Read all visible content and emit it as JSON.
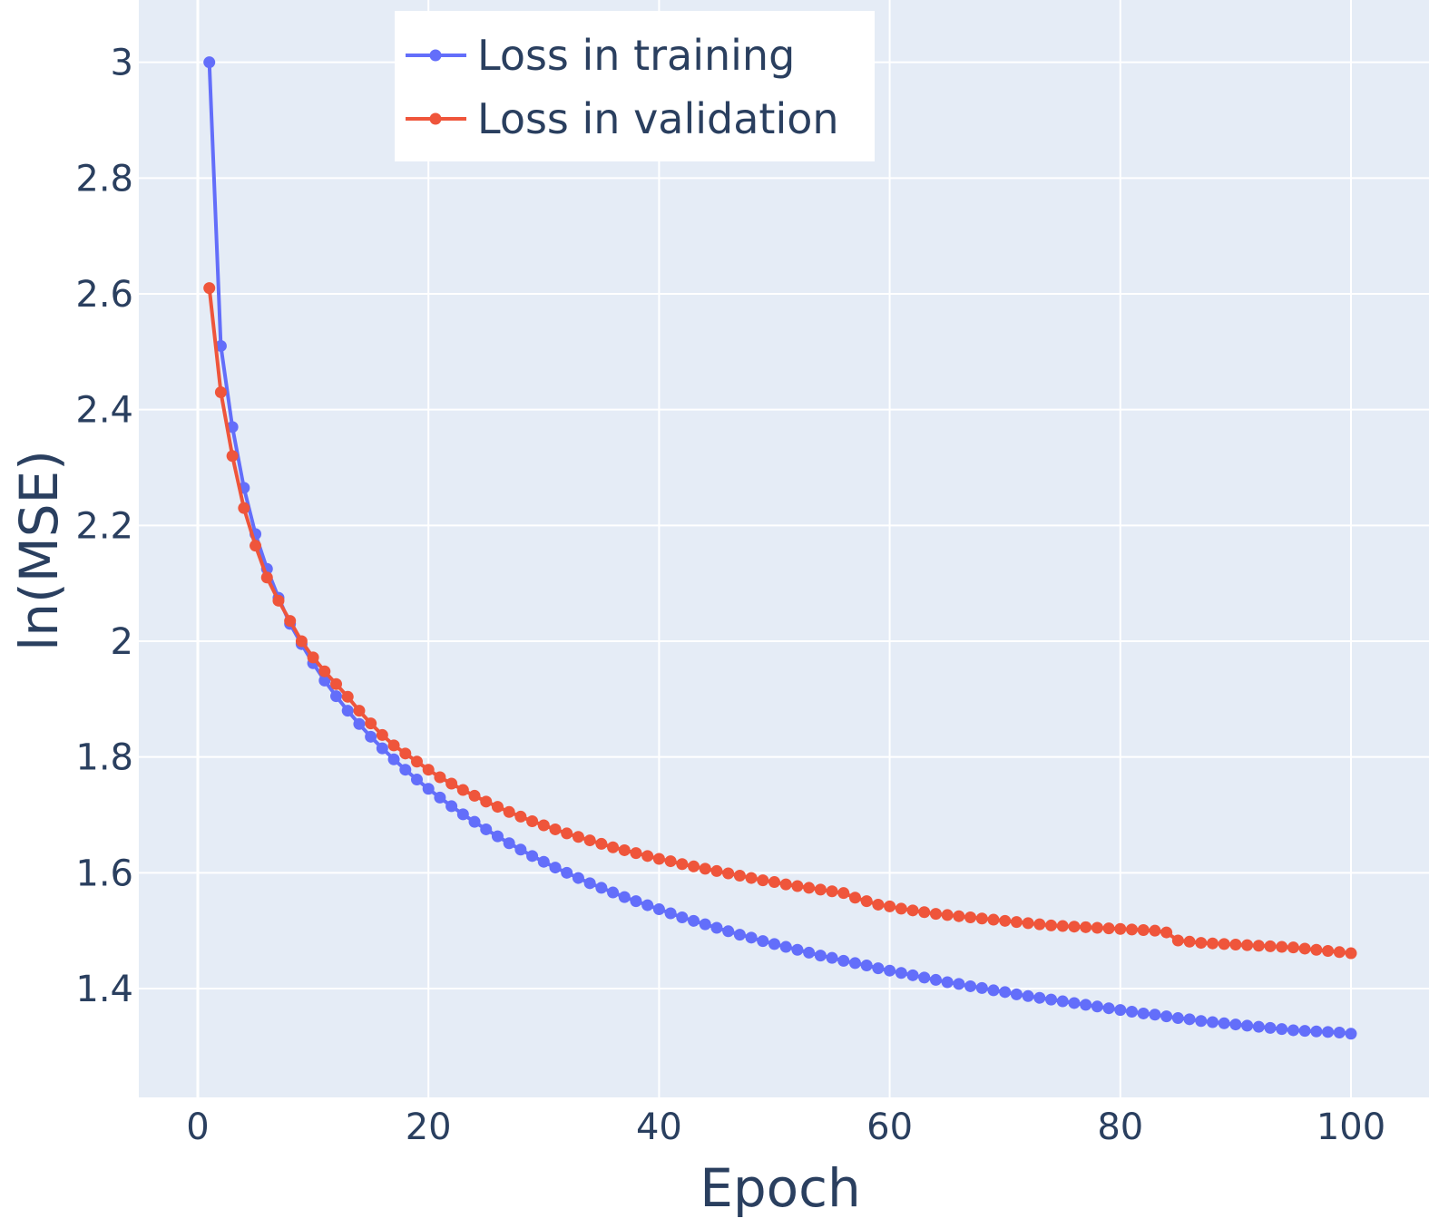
{
  "chart_data": {
    "type": "line",
    "title": "",
    "xlabel": "Epoch",
    "ylabel": "ln(MSE)",
    "xlim": [
      -5,
      107
    ],
    "ylim": [
      1.21,
      3.1
    ],
    "x_ticks": [
      0,
      20,
      40,
      60,
      80,
      100
    ],
    "y_ticks": [
      1.4,
      1.6,
      1.8,
      2.0,
      2.2,
      2.4,
      2.6,
      2.8,
      3.0
    ],
    "y_tick_labels": [
      "1.4",
      "1.6",
      "1.8",
      "2",
      "2.2",
      "2.4",
      "2.6",
      "2.8",
      "3"
    ],
    "grid": true,
    "legend_position": "top-center",
    "colors": {
      "plot_bg": "#e5ecf6",
      "grid": "#ffffff",
      "text": "#2a3f5f",
      "training": "#636efa",
      "validation": "#ef553b",
      "legend_bg": "#ffffff"
    },
    "series": [
      {
        "name": "Loss in training",
        "color": "#636efa",
        "x": [
          1,
          2,
          3,
          4,
          5,
          6,
          7,
          8,
          9,
          10,
          11,
          12,
          13,
          14,
          15,
          16,
          17,
          18,
          19,
          20,
          21,
          22,
          23,
          24,
          25,
          26,
          27,
          28,
          29,
          30,
          31,
          32,
          33,
          34,
          35,
          36,
          37,
          38,
          39,
          40,
          41,
          42,
          43,
          44,
          45,
          46,
          47,
          48,
          49,
          50,
          51,
          52,
          53,
          54,
          55,
          56,
          57,
          58,
          59,
          60,
          61,
          62,
          63,
          64,
          65,
          66,
          67,
          68,
          69,
          70,
          71,
          72,
          73,
          74,
          75,
          76,
          77,
          78,
          79,
          80,
          81,
          82,
          83,
          84,
          85,
          86,
          87,
          88,
          89,
          90,
          91,
          92,
          93,
          94,
          95,
          96,
          97,
          98,
          99,
          100
        ],
        "values": [
          3.0,
          2.51,
          2.37,
          2.265,
          2.185,
          2.125,
          2.075,
          2.03,
          1.995,
          1.962,
          1.932,
          1.905,
          1.88,
          1.857,
          1.835,
          1.815,
          1.796,
          1.778,
          1.761,
          1.745,
          1.73,
          1.715,
          1.701,
          1.688,
          1.675,
          1.663,
          1.651,
          1.64,
          1.629,
          1.619,
          1.609,
          1.6,
          1.591,
          1.582,
          1.574,
          1.566,
          1.558,
          1.551,
          1.544,
          1.537,
          1.53,
          1.523,
          1.517,
          1.511,
          1.505,
          1.499,
          1.493,
          1.488,
          1.482,
          1.477,
          1.472,
          1.467,
          1.462,
          1.457,
          1.453,
          1.448,
          1.444,
          1.44,
          1.435,
          1.431,
          1.427,
          1.423,
          1.419,
          1.415,
          1.411,
          1.408,
          1.404,
          1.401,
          1.397,
          1.394,
          1.39,
          1.387,
          1.384,
          1.381,
          1.378,
          1.375,
          1.372,
          1.369,
          1.366,
          1.363,
          1.36,
          1.357,
          1.355,
          1.352,
          1.349,
          1.347,
          1.344,
          1.342,
          1.34,
          1.338,
          1.336,
          1.334,
          1.332,
          1.33,
          1.328,
          1.327,
          1.326,
          1.325,
          1.324,
          1.322
        ]
      },
      {
        "name": "Loss in validation",
        "color": "#ef553b",
        "x": [
          1,
          2,
          3,
          4,
          5,
          6,
          7,
          8,
          9,
          10,
          11,
          12,
          13,
          14,
          15,
          16,
          17,
          18,
          19,
          20,
          21,
          22,
          23,
          24,
          25,
          26,
          27,
          28,
          29,
          30,
          31,
          32,
          33,
          34,
          35,
          36,
          37,
          38,
          39,
          40,
          41,
          42,
          43,
          44,
          45,
          46,
          47,
          48,
          49,
          50,
          51,
          52,
          53,
          54,
          55,
          56,
          57,
          58,
          59,
          60,
          61,
          62,
          63,
          64,
          65,
          66,
          67,
          68,
          69,
          70,
          71,
          72,
          73,
          74,
          75,
          76,
          77,
          78,
          79,
          80,
          81,
          82,
          83,
          84,
          85,
          86,
          87,
          88,
          89,
          90,
          91,
          92,
          93,
          94,
          95,
          96,
          97,
          98,
          99,
          100
        ],
        "values": [
          2.61,
          2.43,
          2.32,
          2.23,
          2.165,
          2.11,
          2.07,
          2.035,
          2.0,
          1.972,
          1.948,
          1.926,
          1.904,
          1.88,
          1.858,
          1.838,
          1.82,
          1.806,
          1.792,
          1.778,
          1.765,
          1.754,
          1.743,
          1.733,
          1.723,
          1.714,
          1.705,
          1.697,
          1.689,
          1.682,
          1.675,
          1.668,
          1.662,
          1.656,
          1.65,
          1.644,
          1.639,
          1.634,
          1.629,
          1.624,
          1.62,
          1.615,
          1.611,
          1.607,
          1.603,
          1.599,
          1.595,
          1.591,
          1.587,
          1.584,
          1.58,
          1.577,
          1.574,
          1.571,
          1.568,
          1.565,
          1.557,
          1.551,
          1.545,
          1.542,
          1.538,
          1.535,
          1.532,
          1.529,
          1.527,
          1.525,
          1.523,
          1.521,
          1.519,
          1.517,
          1.515,
          1.513,
          1.511,
          1.509,
          1.508,
          1.507,
          1.506,
          1.505,
          1.504,
          1.503,
          1.502,
          1.501,
          1.5,
          1.497,
          1.483,
          1.481,
          1.479,
          1.478,
          1.477,
          1.476,
          1.475,
          1.474,
          1.473,
          1.472,
          1.471,
          1.469,
          1.467,
          1.465,
          1.463,
          1.461
        ]
      }
    ]
  }
}
